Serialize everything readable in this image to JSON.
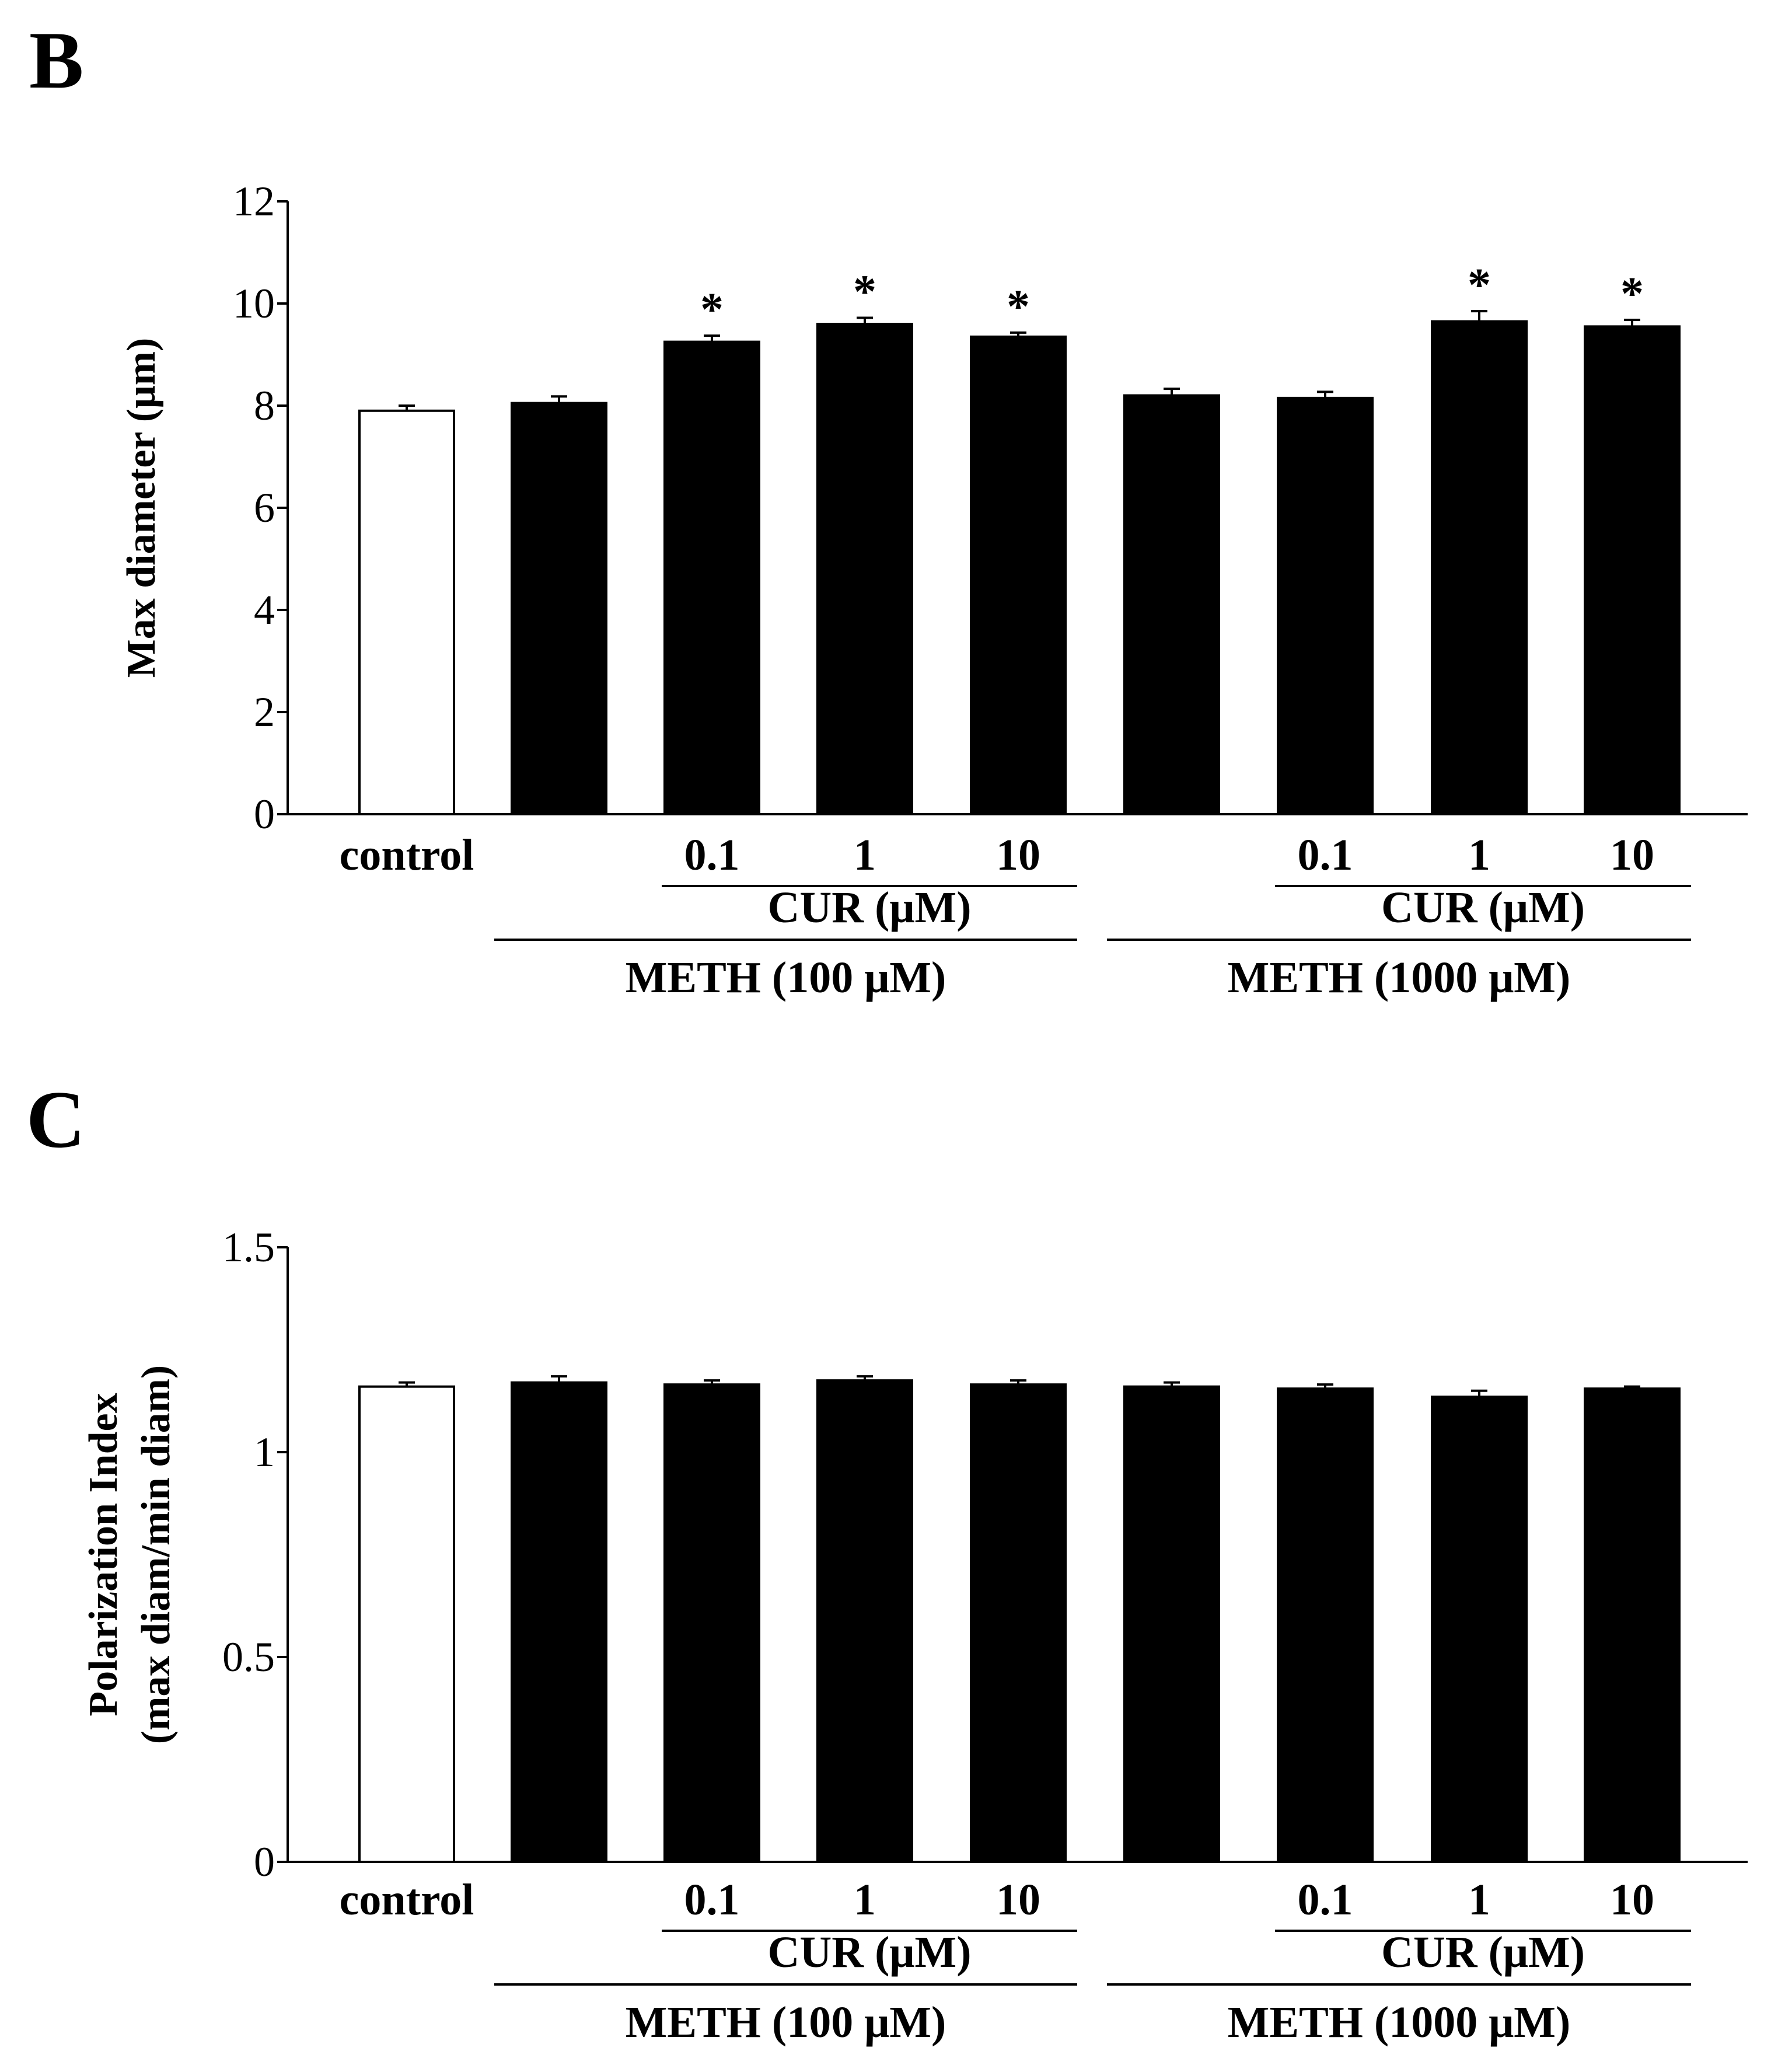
{
  "chart_data": [
    {
      "panel": "B",
      "type": "bar",
      "ylabel": "Max diameter (μm)",
      "ylim": [
        0,
        12
      ],
      "yticks": [
        "0",
        "2",
        "4",
        "6",
        "8",
        "10",
        "12"
      ],
      "categories": [
        "control",
        "",
        "0.1",
        "1",
        "10",
        "",
        "0.1",
        "1",
        "10"
      ],
      "values": [
        7.9,
        8.05,
        9.25,
        9.6,
        9.35,
        8.2,
        8.15,
        9.65,
        9.55
      ],
      "errors": [
        0.1,
        0.13,
        0.12,
        0.12,
        0.08,
        0.13,
        0.12,
        0.2,
        0.13
      ],
      "fills": [
        "#ffffff",
        "#000000",
        "#000000",
        "#000000",
        "#000000",
        "#000000",
        "#000000",
        "#000000",
        "#000000"
      ],
      "significance": [
        "",
        "",
        "*",
        "*",
        "*",
        "",
        "",
        "*",
        "*"
      ],
      "groups": [
        {
          "label": "CUR (μM)",
          "level": 1,
          "from": 2,
          "to": 4
        },
        {
          "label": "METH (100 μM)",
          "level": 2,
          "from": 1,
          "to": 4
        },
        {
          "label": "CUR (μM)",
          "level": 1,
          "from": 6,
          "to": 8
        },
        {
          "label": "METH (1000 μM)",
          "level": 2,
          "from": 5,
          "to": 8
        }
      ]
    },
    {
      "panel": "C",
      "type": "bar",
      "ylabel": "Polarization Index",
      "ylabel2": "(max diam/min diam)",
      "ylim": [
        0,
        1.5
      ],
      "yticks": [
        "0",
        "0.5",
        "1",
        "1.5"
      ],
      "categories": [
        "control",
        "",
        "0.1",
        "1",
        "10",
        "",
        "0.1",
        "1",
        "10"
      ],
      "values": [
        1.16,
        1.17,
        1.165,
        1.175,
        1.165,
        1.16,
        1.155,
        1.135,
        1.155
      ],
      "errors": [
        0.01,
        0.015,
        0.01,
        0.01,
        0.01,
        0.01,
        0.01,
        0.015,
        0.005
      ],
      "fills": [
        "#ffffff",
        "#000000",
        "#000000",
        "#000000",
        "#000000",
        "#000000",
        "#000000",
        "#000000",
        "#000000"
      ],
      "significance": [
        "",
        "",
        "",
        "",
        "",
        "",
        "",
        "",
        ""
      ],
      "groups": [
        {
          "label": "CUR (μM)",
          "level": 1,
          "from": 2,
          "to": 4
        },
        {
          "label": "METH (100 μM)",
          "level": 2,
          "from": 1,
          "to": 4
        },
        {
          "label": "CUR (μM)",
          "level": 1,
          "from": 6,
          "to": 8
        },
        {
          "label": "METH (1000 μM)",
          "level": 2,
          "from": 5,
          "to": 8
        }
      ]
    }
  ]
}
